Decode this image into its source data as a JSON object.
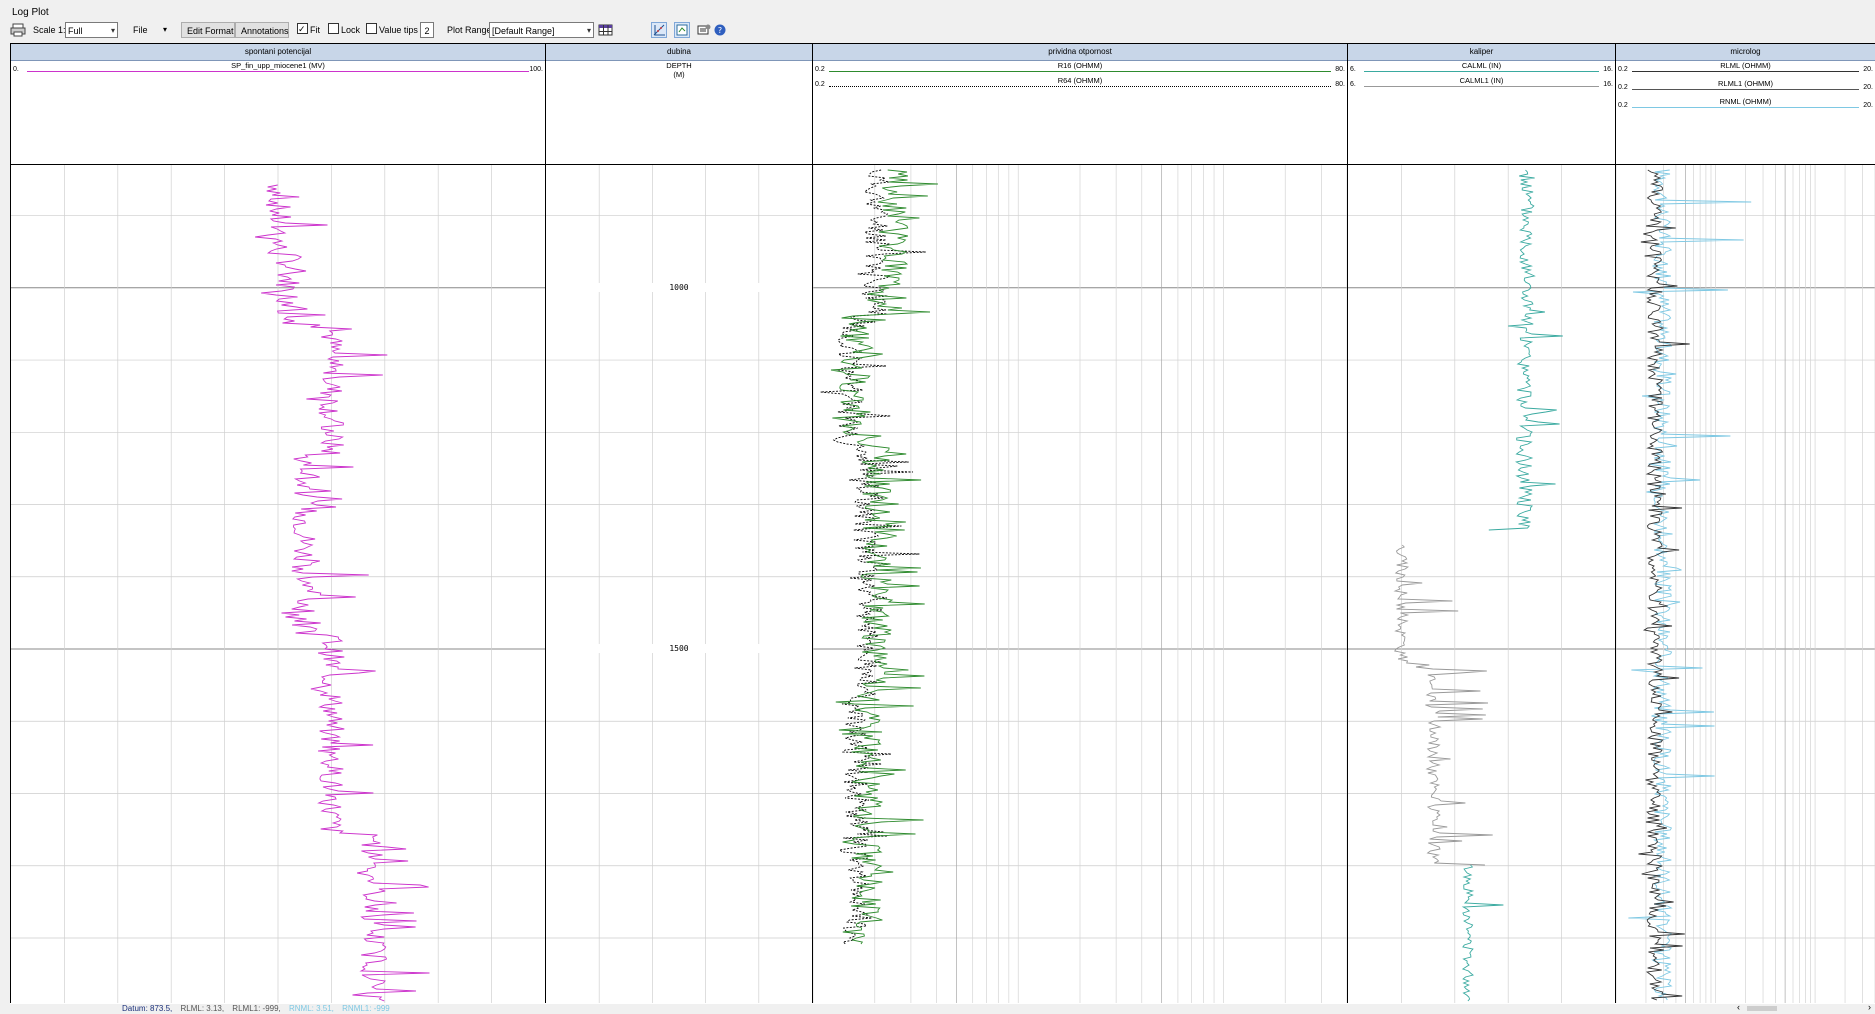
{
  "window": {
    "title": "Log Plot"
  },
  "toolbar": {
    "scale_label": "Scale 1:",
    "scale_value": "Full",
    "file_label": "File",
    "edit_format_label": "Edit Format",
    "annotations_label": "Annotations",
    "fit_label": "Fit",
    "fit_checked": true,
    "lock_label": "Lock",
    "lock_checked": false,
    "value_tips_label": "Value tips",
    "value_tips_checked": false,
    "value_tips_number": "2",
    "plot_range_label": "Plot Range",
    "plot_range_value": "[Default Range]",
    "icons": [
      "print-icon",
      "table-icon",
      "crossplot-icon",
      "zoom-icon",
      "settings-icon",
      "help-icon"
    ]
  },
  "depth_axis": {
    "ticks": [
      1000,
      1500
    ],
    "view_start": 830,
    "view_end": 1990
  },
  "tracks": [
    {
      "id": "sp",
      "title": "spontani potencijal",
      "scale": "linear",
      "grid_cols": 10,
      "curves": [
        {
          "name": "SP_fin_upp_miocene1 (MV)",
          "min": "0.",
          "max": "100.",
          "color": "#cc33cc",
          "dash": false
        }
      ]
    },
    {
      "id": "depth",
      "title": "dubina",
      "header_line1": "DEPTH",
      "header_line2": "(M)",
      "labels": [
        "1000",
        "1500"
      ]
    },
    {
      "id": "res",
      "title": "prividna otpornost",
      "scale": "log",
      "curves": [
        {
          "name": "R16 (OHMM)",
          "min": "0.2",
          "max": "80.",
          "color": "#2e8b2e",
          "dash": false
        },
        {
          "name": "R64 (OHMM)",
          "min": "0.2",
          "max": "80.",
          "color": "#000000",
          "dash": true
        }
      ]
    },
    {
      "id": "cal",
      "title": "kaliper",
      "scale": "linear",
      "grid_cols": 5,
      "curves": [
        {
          "name": "CALML (IN)",
          "min": "6.",
          "max": "16.",
          "color": "#3aaaa0",
          "dash": false
        },
        {
          "name": "CALML1 (IN)",
          "min": "6.",
          "max": "16.",
          "color": "#999999",
          "dash": false
        }
      ]
    },
    {
      "id": "micro",
      "title": "microlog",
      "scale": "log",
      "curves": [
        {
          "name": "RLML (OHMM)",
          "min": "0.2",
          "max": "20.",
          "color": "#333333",
          "dash": false
        },
        {
          "name": "RLML1 (OHMM)",
          "min": "0.2",
          "max": "20.",
          "color": "#555555",
          "dash": false
        },
        {
          "name": "RNML (OHMM)",
          "min": "0.2",
          "max": "20.",
          "color": "#7ec8e3",
          "dash": false
        }
      ]
    }
  ],
  "statusbar": {
    "datum": "Datum: 873.5,",
    "rlml": "RLML: 3.13,",
    "rlml1": "RLML1: -999,",
    "rnml": "RNML: 3.51,",
    "rnml1": "RNML1: -999"
  }
}
